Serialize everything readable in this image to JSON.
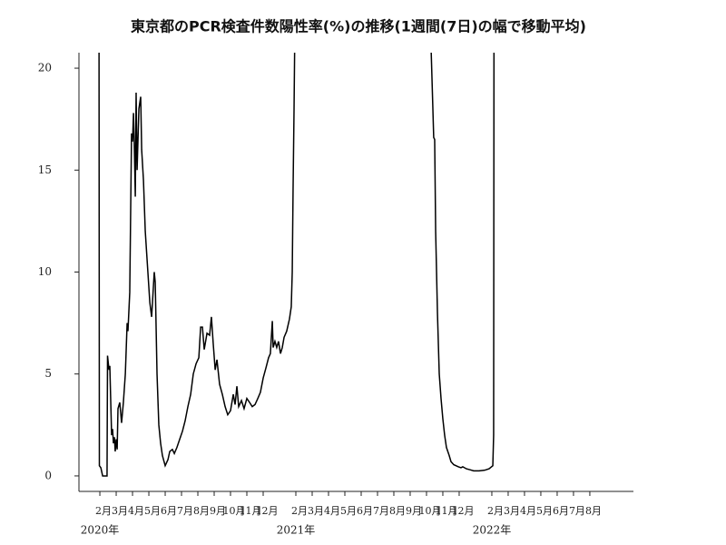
{
  "chart_data": {
    "type": "line",
    "title": "東京都のPCR検査件数陽性率(%)の推移(1週間(7日)の幅で移動平均)",
    "x": [
      1.94,
      1.97,
      2.06,
      2.17,
      2.44,
      2.47,
      2.56,
      2.61,
      2.72,
      2.78,
      2.83,
      2.89,
      2.94,
      3.0,
      3.06,
      3.11,
      3.22,
      3.33,
      3.44,
      3.56,
      3.67,
      3.72,
      3.83,
      3.94,
      4.0,
      4.06,
      4.11,
      4.17,
      4.22,
      4.28,
      4.39,
      4.5,
      4.56,
      4.67,
      4.78,
      4.94,
      5.06,
      5.17,
      5.33,
      5.39,
      5.5,
      5.61,
      5.72,
      5.83,
      6.0,
      6.17,
      6.28,
      6.44,
      6.56,
      6.72,
      6.89,
      7.06,
      7.22,
      7.39,
      7.56,
      7.72,
      7.89,
      8.06,
      8.17,
      8.28,
      8.39,
      8.56,
      8.72,
      8.83,
      8.94,
      9.06,
      9.17,
      9.33,
      9.5,
      9.67,
      9.83,
      10.0,
      10.17,
      10.28,
      10.39,
      10.5,
      10.67,
      10.83,
      11.0,
      11.17,
      11.33,
      11.5,
      11.67,
      11.83,
      12.0,
      12.17,
      12.33,
      12.44,
      12.56,
      12.61,
      12.72,
      12.83,
      12.94,
      13.06,
      13.17,
      13.28,
      13.44,
      13.61,
      13.72,
      13.78,
      13.83,
      13.89,
      13.94,
      14.0,
      22.22,
      22.28,
      22.39,
      22.44,
      22.5,
      22.56,
      22.67,
      22.78,
      22.89,
      23.0,
      23.11,
      23.22,
      23.39,
      23.5,
      23.67,
      23.94,
      24.11,
      24.22,
      24.44,
      24.67,
      24.89,
      25.22,
      25.56,
      25.83,
      26.06,
      26.11,
      26.14
    ],
    "series": [
      {
        "color": "#000000",
        "values": [
          30,
          0.5,
          0.4,
          0,
          0,
          5.9,
          5.2,
          5.4,
          2,
          2.3,
          1.6,
          1.9,
          1.2,
          1.8,
          1.3,
          3.3,
          3.6,
          2.6,
          3.6,
          5,
          7.5,
          7.1,
          9,
          16.8,
          16.4,
          17.8,
          16.2,
          13.7,
          18.8,
          15,
          18,
          18.6,
          16,
          14.5,
          12,
          10,
          8.5,
          7.8,
          10,
          9.5,
          5,
          2.5,
          1.6,
          1,
          0.5,
          0.8,
          1.2,
          1.3,
          1.1,
          1.4,
          1.8,
          2.2,
          2.7,
          3.4,
          4,
          5,
          5.5,
          5.8,
          7.3,
          7.3,
          6.2,
          7,
          6.9,
          7.8,
          6.5,
          5.2,
          5.7,
          4.5,
          4,
          3.4,
          3,
          3.2,
          4,
          3.5,
          4.4,
          3.4,
          3.7,
          3.3,
          3.8,
          3.6,
          3.4,
          3.5,
          3.8,
          4.1,
          4.8,
          5.3,
          5.8,
          6,
          7.6,
          6.3,
          6.6,
          6.3,
          6.6,
          6,
          6.3,
          6.8,
          7.1,
          7.7,
          8.3,
          10,
          14,
          18,
          22,
          30,
          30,
          21,
          18,
          16.6,
          16.5,
          12,
          8,
          5,
          3.8,
          2.8,
          2,
          1.4,
          1,
          0.7,
          0.55,
          0.45,
          0.4,
          0.45,
          0.35,
          0.3,
          0.25,
          0.25,
          0.28,
          0.35,
          0.5,
          2,
          30
        ]
      }
    ],
    "xlim": [
      0.72,
      34.67
    ],
    "ylim": [
      -0.76,
      20.76
    ],
    "xticks": [
      {
        "value": 2,
        "label": "2月"
      },
      {
        "value": 3,
        "label": "3月"
      },
      {
        "value": 4,
        "label": "4月"
      },
      {
        "value": 5,
        "label": "5月"
      },
      {
        "value": 6,
        "label": "6月"
      },
      {
        "value": 7,
        "label": "7月"
      },
      {
        "value": 8,
        "label": "8月"
      },
      {
        "value": 9,
        "label": "9月"
      },
      {
        "value": 10,
        "label": "10月"
      },
      {
        "value": 11,
        "label": "11月"
      },
      {
        "value": 12,
        "label": "12月"
      },
      {
        "value": 14,
        "label": "2月"
      },
      {
        "value": 15,
        "label": "3月"
      },
      {
        "value": 16,
        "label": "4月"
      },
      {
        "value": 17,
        "label": "5月"
      },
      {
        "value": 18,
        "label": "6月"
      },
      {
        "value": 19,
        "label": "7月"
      },
      {
        "value": 20,
        "label": "8月"
      },
      {
        "value": 21,
        "label": "9月"
      },
      {
        "value": 22,
        "label": "10月"
      },
      {
        "value": 23,
        "label": "11月"
      },
      {
        "value": 24,
        "label": "12月"
      },
      {
        "value": 26,
        "label": "2月"
      },
      {
        "value": 27,
        "label": "3月"
      },
      {
        "value": 28,
        "label": "4月"
      },
      {
        "value": 29,
        "label": "5月"
      },
      {
        "value": 30,
        "label": "6月"
      },
      {
        "value": 31,
        "label": "7月"
      },
      {
        "value": 32,
        "label": "8月"
      }
    ],
    "year_labels": [
      {
        "value": 2,
        "label": "2020年"
      },
      {
        "value": 14,
        "label": "2021年"
      },
      {
        "value": 26,
        "label": "2022年"
      }
    ],
    "yticks": [
      0,
      5,
      10,
      15,
      20
    ],
    "grid": false
  }
}
